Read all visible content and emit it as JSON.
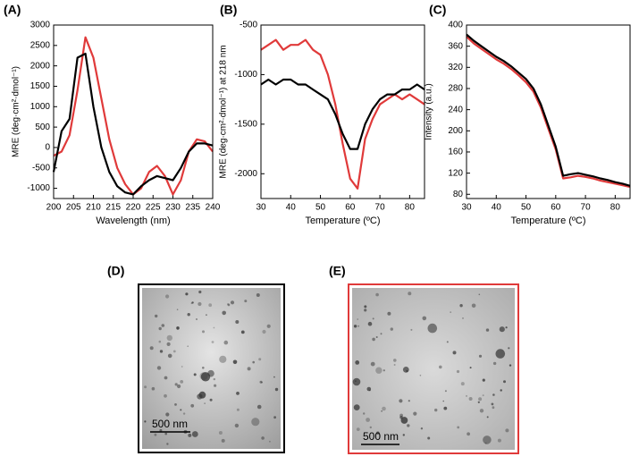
{
  "chart_data": [
    {
      "type": "line",
      "label": "(A)",
      "xlabel": "Wavelength (nm)",
      "ylabel": "MRE (deg·cm²·dmol⁻¹)",
      "x": [
        200,
        202,
        204,
        206,
        208,
        210,
        212,
        214,
        216,
        218,
        220,
        222,
        224,
        226,
        228,
        230,
        232,
        234,
        236,
        238,
        240
      ],
      "series": [
        {
          "color": "#e03a3a",
          "values": [
            -200,
            -100,
            300,
            1400,
            2700,
            2200,
            1200,
            200,
            -500,
            -900,
            -1150,
            -1000,
            -600,
            -450,
            -700,
            -1150,
            -800,
            -100,
            200,
            150,
            -100
          ]
        },
        {
          "color": "#000000",
          "values": [
            -600,
            400,
            700,
            2200,
            2300,
            1000,
            0,
            -600,
            -950,
            -1100,
            -1150,
            -950,
            -800,
            -700,
            -750,
            -800,
            -500,
            -100,
            100,
            100,
            50
          ]
        }
      ],
      "xlim": [
        200,
        240
      ],
      "xticks": [
        200,
        205,
        210,
        215,
        220,
        225,
        230,
        235,
        240
      ],
      "ylim": [
        -1250,
        3000
      ],
      "yticks": [
        -1000,
        -500,
        0,
        500,
        1000,
        1500,
        2000,
        2500,
        3000
      ]
    },
    {
      "type": "line",
      "label": "(B)",
      "xlabel": "Temperature (ºC)",
      "ylabel": "MRE (deg·cm²·dmol⁻¹) at 218 nm",
      "x": [
        30,
        32.5,
        35,
        37.5,
        40,
        42.5,
        45,
        47.5,
        50,
        52.5,
        55,
        57.5,
        60,
        62.5,
        65,
        67.5,
        70,
        72.5,
        75,
        77.5,
        80,
        82.5,
        85
      ],
      "series": [
        {
          "color": "#e03a3a",
          "values": [
            -750,
            -700,
            -650,
            -750,
            -700,
            -700,
            -650,
            -750,
            -800,
            -1000,
            -1300,
            -1700,
            -2050,
            -2150,
            -1650,
            -1450,
            -1300,
            -1250,
            -1200,
            -1250,
            -1200,
            -1250,
            -1300
          ]
        },
        {
          "color": "#000000",
          "values": [
            -1100,
            -1050,
            -1100,
            -1050,
            -1050,
            -1100,
            -1100,
            -1150,
            -1200,
            -1250,
            -1400,
            -1600,
            -1750,
            -1750,
            -1500,
            -1350,
            -1250,
            -1200,
            -1200,
            -1150,
            -1150,
            -1100,
            -1150
          ]
        }
      ],
      "xlim": [
        30,
        85
      ],
      "xticks": [
        30,
        40,
        50,
        60,
        70,
        80
      ],
      "ylim": [
        -2250,
        -500
      ],
      "yticks": [
        -2000,
        -1500,
        -1000,
        -500
      ]
    },
    {
      "type": "line",
      "label": "(C)",
      "xlabel": "Temperature (ºC)",
      "ylabel": "Intensity (a.u.)",
      "x": [
        30,
        32.5,
        35,
        37.5,
        40,
        42.5,
        45,
        47.5,
        50,
        52.5,
        55,
        57.5,
        60,
        62.5,
        65,
        67.5,
        70,
        72.5,
        75,
        77.5,
        80,
        82.5,
        85
      ],
      "series": [
        {
          "color": "#e03a3a",
          "values": [
            378,
            365,
            355,
            345,
            335,
            327,
            317,
            305,
            292,
            274,
            244,
            204,
            165,
            110,
            112,
            115,
            113,
            110,
            106,
            103,
            100,
            97,
            94
          ]
        },
        {
          "color": "#000000",
          "values": [
            382,
            370,
            360,
            350,
            340,
            332,
            322,
            310,
            298,
            280,
            250,
            210,
            170,
            115,
            118,
            120,
            117,
            114,
            110,
            107,
            103,
            100,
            96
          ]
        }
      ],
      "xlim": [
        30,
        85
      ],
      "xticks": [
        30,
        40,
        50,
        60,
        70,
        80
      ],
      "ylim": [
        72,
        400
      ],
      "yticks": [
        80,
        120,
        160,
        200,
        240,
        280,
        320,
        360,
        400
      ]
    }
  ],
  "images": [
    {
      "label": "(D)",
      "scale_bar": "500 nm"
    },
    {
      "label": "(E)",
      "scale_bar": "500 nm"
    }
  ]
}
